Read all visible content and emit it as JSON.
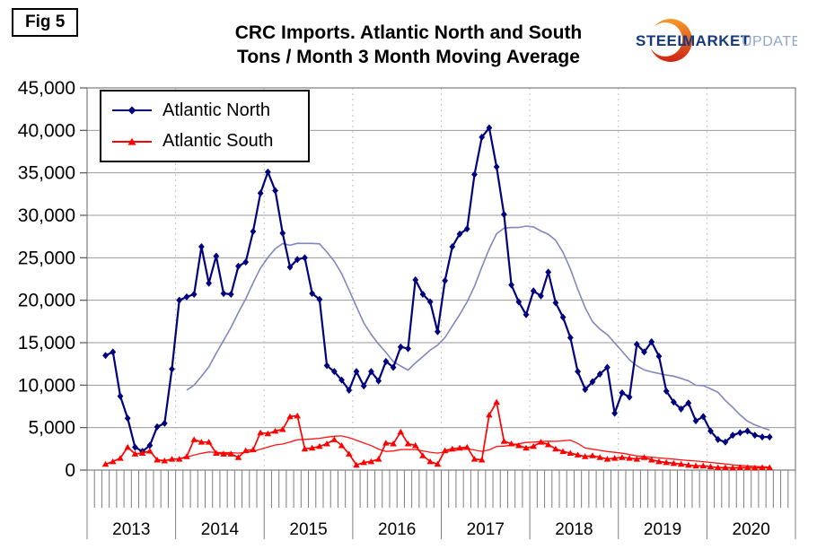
{
  "fig_label": "Fig 5",
  "header": {
    "title_line1": "CRC Imports. Atlantic North and South",
    "title_line2": "Tons / Month 3 Month Moving Average"
  },
  "logo": {
    "steel": "STEEL",
    "market": "MARKET",
    "update": "UPDATE",
    "crescent_orange": "#F59A2B",
    "crescent_red": "#CE2413",
    "blue": "#16387C",
    "light_blue": "#8FA6C8"
  },
  "chart_data": {
    "type": "line",
    "title": "CRC Imports. Atlantic North and South",
    "subtitle": "Tons / Month 3 Month Moving Average",
    "xlabel": "",
    "ylabel": "",
    "ylim": [
      0,
      45000
    ],
    "ytick_step": 5000,
    "ytick_format": "comma",
    "grid": true,
    "legend_position": "top-left",
    "x_years": [
      2013,
      2014,
      2015,
      2016,
      2017,
      2018,
      2019,
      2020
    ],
    "start": {
      "year": 2013,
      "month": 3
    },
    "x_tick_interval": "month",
    "axis_color": "#7D7D7D",
    "gridline_color": "#9A9A9A",
    "year_gridline_color": "#C4C4C4",
    "series": [
      {
        "name": "Atlantic North",
        "color": "#00007E",
        "marker": "diamond",
        "line_width": 2.2,
        "values": [
          13500,
          13900,
          8700,
          6100,
          2700,
          2200,
          2900,
          5100,
          5500,
          11900,
          20000,
          20400,
          20700,
          26300,
          22000,
          25200,
          20800,
          20700,
          24000,
          24500,
          28100,
          32600,
          35100,
          32900,
          27900,
          23900,
          24800,
          25000,
          20800,
          20100,
          12300,
          11600,
          10600,
          9400,
          11600,
          9900,
          11600,
          10500,
          12800,
          12100,
          14500,
          14300,
          22400,
          20700,
          19800,
          16300,
          22300,
          26300,
          27800,
          28400,
          34800,
          39200,
          40300,
          35700,
          30100,
          21800,
          19800,
          18300,
          21100,
          20500,
          23300,
          19700,
          18000,
          15600,
          11600,
          9500,
          10400,
          11300,
          12100,
          6700,
          9100,
          8600,
          14800,
          13900,
          15100,
          13400,
          9300,
          8000,
          7200,
          7900,
          5800,
          6300,
          4600,
          3600,
          3300,
          4100,
          4400,
          4600,
          4100,
          3900,
          3900
        ]
      },
      {
        "name": "Atlantic South",
        "color": "#FF0000",
        "marker": "triangle",
        "line_width": 1.7,
        "values": [
          700,
          1000,
          1400,
          2700,
          1900,
          2000,
          2250,
          1200,
          1100,
          1300,
          1300,
          1600,
          3600,
          3300,
          3300,
          2000,
          1900,
          1900,
          1500,
          2300,
          2400,
          4400,
          4300,
          4600,
          4800,
          6300,
          6400,
          2500,
          2600,
          2800,
          3100,
          3600,
          2900,
          1900,
          600,
          900,
          1000,
          1300,
          3200,
          3100,
          4500,
          3100,
          2900,
          1700,
          1000,
          700,
          2300,
          2500,
          2600,
          2700,
          1300,
          1200,
          6500,
          8000,
          3400,
          3100,
          2900,
          2600,
          2800,
          3300,
          3000,
          2500,
          2200,
          2000,
          1800,
          1600,
          1700,
          1500,
          1300,
          1400,
          1500,
          1400,
          1300,
          1500,
          1200,
          1000,
          900,
          800,
          700,
          600,
          500,
          500,
          400,
          300,
          300,
          250,
          300,
          300,
          250,
          300,
          300
        ]
      }
    ],
    "trend_lines": [
      {
        "name": "Atlantic North 12-month moving average",
        "source": 0,
        "window": 12,
        "color": "#8087BD",
        "line_width": 1.6
      },
      {
        "name": "Atlantic South 12-month moving average",
        "source": 1,
        "window": 12,
        "color": "#FF1414",
        "line_width": 1.3
      }
    ]
  }
}
